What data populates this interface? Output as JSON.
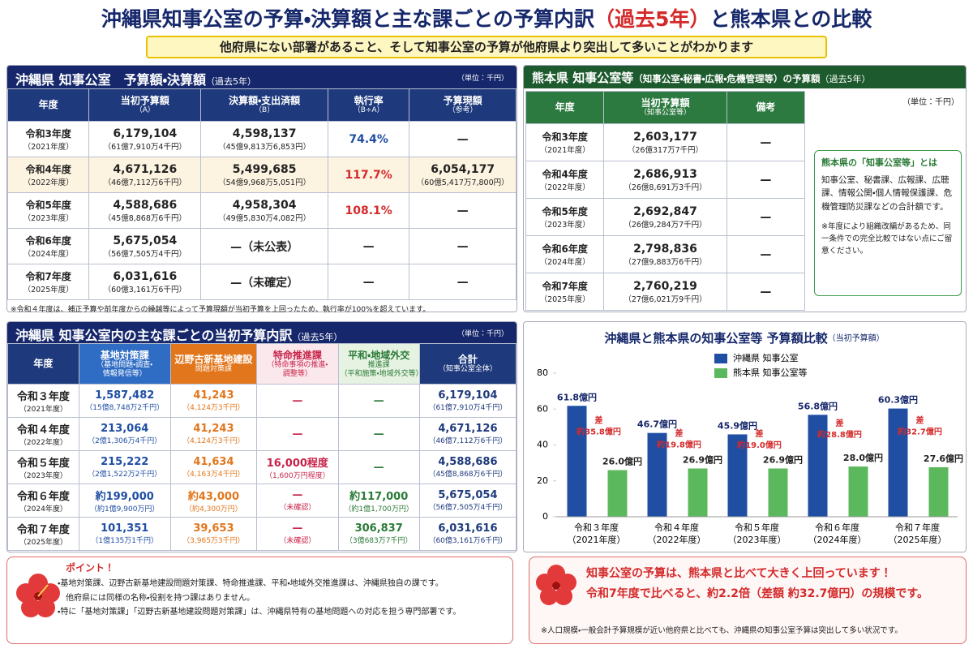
{
  "title_parts": [
    "沖縄県知事公室の予算・決算額と主な課ごとの予算内訳",
    "（過去5年）",
    "と熊本県との比較"
  ],
  "subtitle": "他府県にない部署があること、そして知事公室の予算が他府県より突出して多いことがわかります",
  "okinawa_budget": {
    "header": "沖縄県 知事公室　予算額・決算額",
    "period": "（過去5年）",
    "unit": "（単位：千円）",
    "columns": [
      [
        "年度"
      ],
      [
        "当初予算額",
        "（A）"
      ],
      [
        "決算額・支出済額",
        "（B）"
      ],
      [
        "執行率",
        "（B÷A）"
      ],
      [
        "予算現額",
        "（参考）"
      ]
    ],
    "rows": [
      [
        [
          "令和3年度",
          "（2021年度）"
        ],
        [
          "6,179,104",
          "（61億7,910万4千円）"
        ],
        [
          "4,598,137",
          "（45億9,813万6,853円）"
        ],
        [
          "74.4%"
        ],
        [
          "—"
        ]
      ],
      [
        [
          "令和4年度",
          "（2022年度）"
        ],
        [
          "4,671,126",
          "（46億7,112万6千円）"
        ],
        [
          "5,499,685",
          "（54億9,968万5,051円）"
        ],
        [
          "117.7%"
        ],
        [
          "6,054,177",
          "（60億5,417万7,800円）"
        ]
      ],
      [
        [
          "令和5年度",
          "（2023年度）"
        ],
        [
          "4,588,686",
          "（45億8,868万6千円）"
        ],
        [
          "4,958,304",
          "（49億5,830万4,082円）"
        ],
        [
          "108.1%"
        ],
        [
          "—"
        ]
      ],
      [
        [
          "令和6年度",
          "（2024年度）"
        ],
        [
          "5,675,054",
          "（56億7,505万4千円）"
        ],
        [
          "—（未公表）"
        ],
        [
          "—"
        ],
        [
          "—"
        ]
      ],
      [
        [
          "令和7年度",
          "（2025年度）"
        ],
        [
          "6,031,616",
          "（60億3,161万6千円）"
        ],
        [
          "—（未確定）"
        ],
        [
          "—"
        ],
        [
          "—"
        ]
      ]
    ],
    "note": "※令和４年度は、補正予算や前年度からの繰越等によって予算現額が当初予算を上回ったため、執行率が100%を超えています。"
  },
  "kumamoto_budget": {
    "header": "熊本県 知事公室等",
    "header_detail": "（知事公室・秘書・広報・危機管理等）の予算額",
    "period": "（過去5年）",
    "unit": "（単位：千円）",
    "columns": [
      [
        "年度"
      ],
      [
        "当初予算額",
        "（知事公室等）"
      ],
      [
        "備考"
      ]
    ],
    "rows": [
      [
        [
          "令和3年度",
          "（2021年度）"
        ],
        [
          "2,603,177",
          "（26億317万7千円）"
        ],
        [
          "—"
        ]
      ],
      [
        [
          "令和4年度",
          "（2022年度）"
        ],
        [
          "2,686,913",
          "（26億8,691万3千円）"
        ],
        [
          "—"
        ]
      ],
      [
        [
          "令和5年度",
          "（2023年度）"
        ],
        [
          "2,692,847",
          "（26億9,284万7千円）"
        ],
        [
          "—"
        ]
      ],
      [
        [
          "令和6年度",
          "（2024年度）"
        ],
        [
          "2,798,836",
          "（27億9,883万6千円）"
        ],
        [
          "—"
        ]
      ],
      [
        [
          "令和7年度",
          "（2025年度）"
        ],
        [
          "2,760,219",
          "（27億6,021万9千円）"
        ],
        [
          "—"
        ]
      ]
    ],
    "side_title": "熊本県の「知事公室等」とは",
    "side_body": "知事公室、秘書課、広報課、広聴課、情報公開・個人情報保護課、危機管理防災課などの合計額です。",
    "side_note": "※年度により組織改編があるため、同一条件での完全比較ではない点にご留意ください。"
  },
  "breakdown": {
    "header": "沖縄県 知事公室内の主な課ごとの当初予算内訳",
    "period": "（過去5年）",
    "unit": "（単位：千円）",
    "columns": [
      [
        "年度"
      ],
      [
        "基地対策課",
        "（基地問題・調査・",
        "情報発信等）"
      ],
      [
        "辺野古新基地建設",
        "問題対策課"
      ],
      [
        "特命推進課",
        "（特命事項の推進・",
        "調整等）"
      ],
      [
        "平和・地域外交",
        "推進課",
        "（平和施策・地域外交等）"
      ],
      [
        "合計",
        "（知事公室全体）"
      ]
    ],
    "rows": [
      [
        [
          "令和３年度",
          "（2021年度）"
        ],
        [
          "1,587,482",
          "（15億8,748万2千円）"
        ],
        [
          "41,243",
          "（4,124万3千円）"
        ],
        [
          "—"
        ],
        [
          "—"
        ],
        [
          "6,179,104",
          "（61億7,910万4千円）"
        ]
      ],
      [
        [
          "令和４年度",
          "（2022年度）"
        ],
        [
          "213,064",
          "（2億1,306万4千円）"
        ],
        [
          "41,243",
          "（4,124万3千円）"
        ],
        [
          "—"
        ],
        [
          "—"
        ],
        [
          "4,671,126",
          "（46億7,112万6千円）"
        ]
      ],
      [
        [
          "令和５年度",
          "（2023年度）"
        ],
        [
          "215,222",
          "（2億1,522万2千円）"
        ],
        [
          "41,634",
          "（4,163万4千円）"
        ],
        [
          "16,000程度",
          "（1,600万円程度）"
        ],
        [
          "—"
        ],
        [
          "4,588,686",
          "（45億8,868万6千円）"
        ]
      ],
      [
        [
          "令和６年度",
          "（2024年度）"
        ],
        [
          "約199,000",
          "（約1億9,900万円）"
        ],
        [
          "約43,000",
          "（約4,300万円）"
        ],
        [
          "—",
          "（未確認）"
        ],
        [
          "約117,000",
          "（約1億1,700万円）"
        ],
        [
          "5,675,054",
          "（56億7,505万4千円）"
        ]
      ],
      [
        [
          "令和７年度",
          "（2025年度）"
        ],
        [
          "101,351",
          "（1億135万1千円）"
        ],
        [
          "39,653",
          "（3,965万3千円）"
        ],
        [
          "—",
          "（未確認）"
        ],
        [
          "306,837",
          "（3億683万7千円）"
        ],
        [
          "6,031,616",
          "（60億3,161万6千円）"
        ]
      ]
    ]
  },
  "chart_data": {
    "type": "bar",
    "title": "沖縄県と熊本県の知事公室等 予算額比較",
    "subtitle": "（当初予算額）",
    "categories": [
      "令和３年度",
      "令和４年度",
      "令和５年度",
      "令和６年度",
      "令和７年度"
    ],
    "category_years": [
      "（2021年度）",
      "（2022年度）",
      "（2023年度）",
      "（2024年度）",
      "（2025年度）"
    ],
    "series": [
      {
        "name": "沖縄県 知事公室",
        "color": "#1f4ea3",
        "values": [
          61.8,
          46.7,
          45.9,
          56.8,
          60.3
        ],
        "value_labels": [
          "61.8億円",
          "46.7億円",
          "45.9億円",
          "56.8億円",
          "60.3億円"
        ]
      },
      {
        "name": "熊本県 知事公室等",
        "color": "#5cb85c",
        "values": [
          26.0,
          26.9,
          26.9,
          28.0,
          27.6
        ],
        "value_labels": [
          "26.0億円",
          "26.9億円",
          "26.9億円",
          "28.0億円",
          "27.6億円"
        ]
      }
    ],
    "differences": [
      [
        "差",
        "約35.8億円"
      ],
      [
        "差",
        "約19.8億円"
      ],
      [
        "差",
        "約19.0億円"
      ],
      [
        "差",
        "約28.8億円"
      ],
      [
        "差",
        "約32.7億円"
      ]
    ],
    "ylim": [
      0,
      80
    ],
    "yticks": [
      0,
      20,
      40,
      60,
      80
    ],
    "grid": false
  },
  "points": {
    "title": "ポイント！",
    "items": [
      "・基地対策課、辺野古新基地建設問題対策課、特命推進課、平和・地域外交推進課は、沖縄県独自の課です。",
      "　他府県には同様の名称・役割を持つ課はありません。",
      "・特に「基地対策課」「辺野古新基地建設問題対策課」は、沖縄県特有の基地問題への対応を担う専門部署です。"
    ]
  },
  "conclusion": {
    "lines": [
      "知事公室の予算は、熊本県と比べて大きく上回っています！",
      "令和7年度で比べると、約2.2倍（差額 約32.7億円）の規模です。"
    ],
    "note": "※人口規模・一般会計予算規模が近い他府県と比べても、沖縄県の知事公室予算は突出して多い状況です。"
  }
}
